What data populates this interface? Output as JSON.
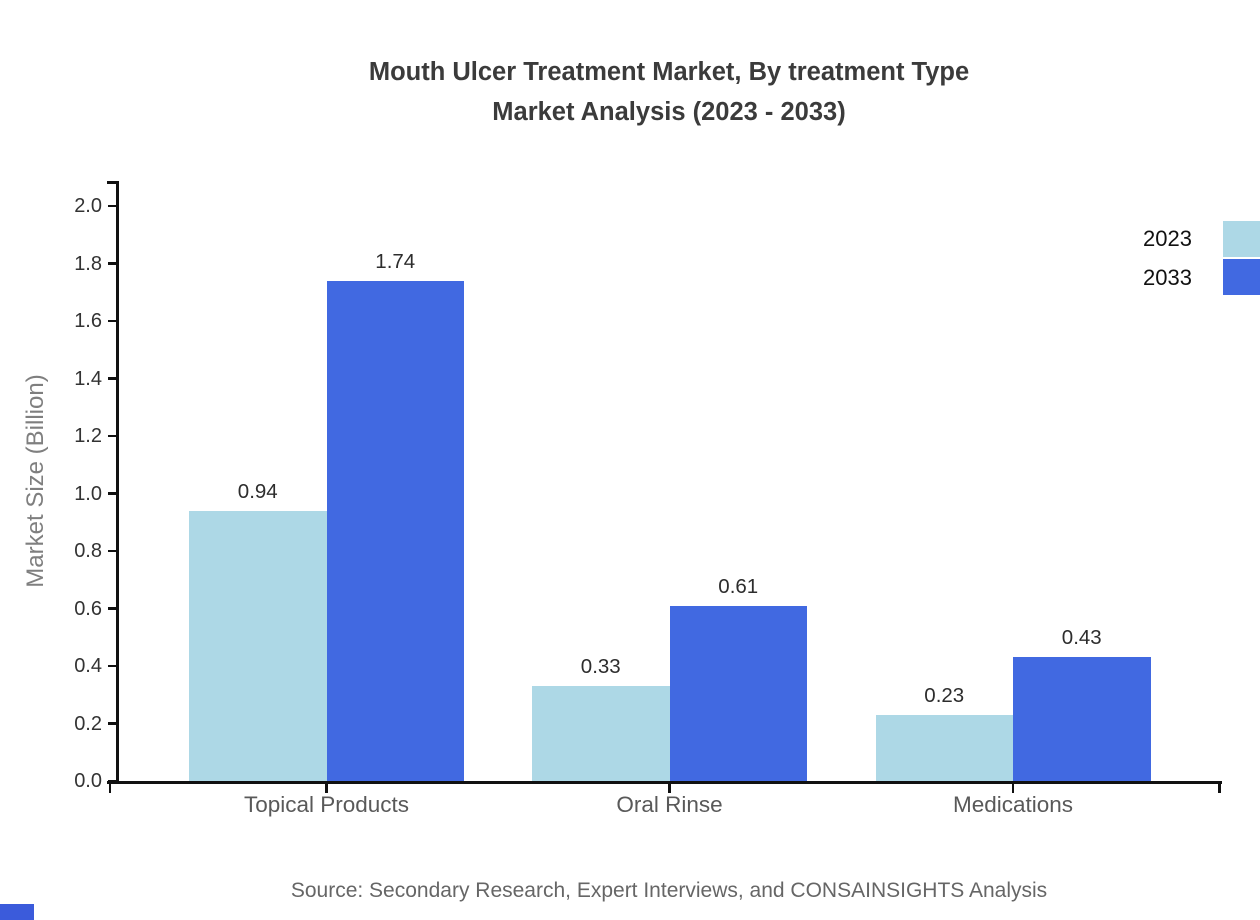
{
  "title": {
    "line1": "Mouth Ulcer Treatment Market, By treatment Type",
    "line2": "Market Analysis (2023 - 2033)"
  },
  "y_axis": {
    "label": "Market Size (Billion)",
    "ticks": [
      "0.0",
      "0.2",
      "0.4",
      "0.6",
      "0.8",
      "1.0",
      "1.2",
      "1.4",
      "1.6",
      "1.8",
      "2.0"
    ]
  },
  "legend": [
    {
      "label": "2023",
      "color": "#ADD8E6"
    },
    {
      "label": "2033",
      "color": "#4169E1"
    }
  ],
  "source": "Source: Secondary Research, Expert Interviews, and CONSAINSIGHTS Analysis",
  "corner_mark": {
    "color": "#3b5bdb"
  },
  "chart_data": {
    "type": "bar",
    "categories": [
      "Topical Products",
      "Oral Rinse",
      "Medications"
    ],
    "series": [
      {
        "name": "2023",
        "color": "#ADD8E6",
        "values": [
          0.94,
          0.33,
          0.23
        ]
      },
      {
        "name": "2033",
        "color": "#4169E1",
        "values": [
          1.74,
          0.61,
          0.43
        ]
      }
    ],
    "title": "Mouth Ulcer Treatment Market, By treatment Type Market Analysis (2023 - 2033)",
    "xlabel": "",
    "ylabel": "Market Size (Billion)",
    "ylim": [
      0,
      2.0
    ],
    "ytick_step": 0.2,
    "grid": false,
    "legend_position": "upper-right",
    "bar_value_labels": true
  }
}
